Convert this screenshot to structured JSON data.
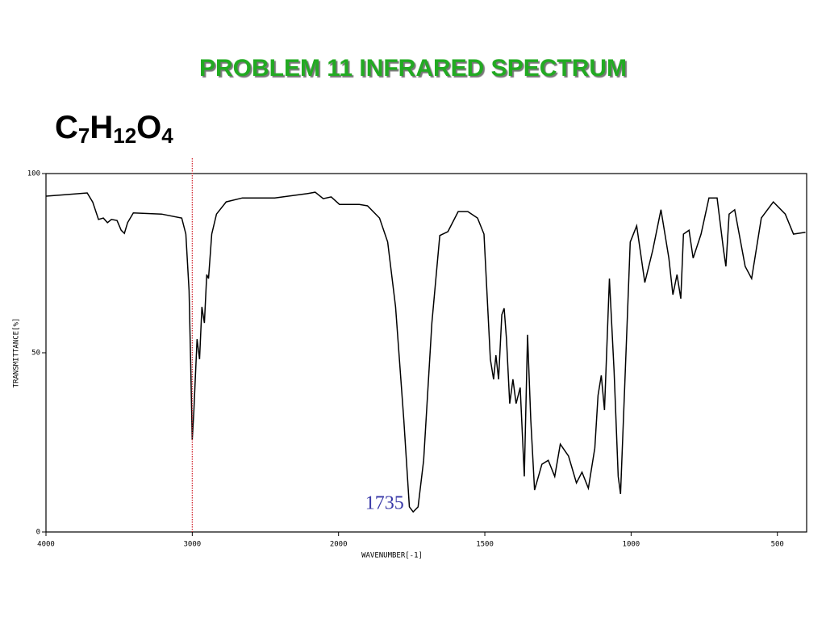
{
  "chart_data": {
    "type": "line",
    "title": "PROBLEM  11   INFRARED SPECTRUM",
    "formula": [
      {
        "text": "C"
      },
      {
        "text": "7",
        "sub": true
      },
      {
        "text": "H"
      },
      {
        "text": "12",
        "sub": true
      },
      {
        "text": "O"
      },
      {
        "text": "4",
        "sub": true
      }
    ],
    "x_label": "WAVENUMBER[-1]",
    "y_label": "TRANSMITTANCE[%]",
    "annotation": {
      "text": "1735",
      "x": 1735
    },
    "reference_line": {
      "x": 3000,
      "color": "#d0202a"
    },
    "xlim": [
      4000,
      400
    ],
    "x_scale_break": 2000,
    "xticks": [
      4000,
      3000,
      2000,
      1500,
      1000,
      500
    ],
    "ylim": [
      0,
      100
    ],
    "yticks": [
      0,
      50,
      100
    ],
    "series": [
      {
        "color": "#000000",
        "x": [
          4000,
          3873,
          3718,
          3680,
          3641,
          3608,
          3580,
          3552,
          3514,
          3486,
          3464,
          3442,
          3403,
          3210,
          3072,
          3044,
          3022,
          3011,
          3000,
          2989,
          2967,
          2950,
          2934,
          2917,
          2901,
          2889,
          2867,
          2834,
          2768,
          2657,
          2436,
          2215,
          2160,
          2105,
          2050,
          1997,
          1929,
          1901,
          1860,
          1832,
          1805,
          1777,
          1758,
          1745,
          1728,
          1709,
          1681,
          1654,
          1626,
          1591,
          1558,
          1525,
          1503,
          1481,
          1470,
          1462,
          1453,
          1442,
          1434,
          1426,
          1415,
          1404,
          1393,
          1379,
          1365,
          1354,
          1343,
          1330,
          1305,
          1283,
          1261,
          1242,
          1214,
          1187,
          1168,
          1146,
          1124,
          1113,
          1102,
          1091,
          1074,
          1058,
          1044,
          1036,
          1022,
          1003,
          981,
          953,
          926,
          898,
          871,
          857,
          843,
          830,
          821,
          802,
          788,
          761,
          734,
          706,
          684,
          676,
          665,
          646,
          610,
          588,
          555,
          514,
          473,
          445,
          404
        ],
        "values": [
          93.7,
          94.1,
          94.6,
          92,
          87.2,
          87.6,
          86.3,
          87.2,
          86.9,
          84.2,
          83.3,
          86.3,
          89,
          88.7,
          87.6,
          83.1,
          67.3,
          47,
          25.7,
          33.6,
          53.8,
          48.2,
          62.8,
          58.3,
          71.8,
          70.7,
          83.1,
          88.7,
          92.1,
          93.2,
          93.2,
          94.4,
          94.8,
          93,
          93.5,
          91.4,
          91.4,
          91,
          87.6,
          80.9,
          62.8,
          31.3,
          7,
          5.6,
          7,
          20,
          58.3,
          82.7,
          83.8,
          89.4,
          89.4,
          87.6,
          83.1,
          48.2,
          42.6,
          49.3,
          42.6,
          60.6,
          62.4,
          53.8,
          35.8,
          42.6,
          35.8,
          40.3,
          15.5,
          55,
          31.3,
          11.7,
          18.9,
          20,
          15.5,
          24.5,
          21.2,
          13.7,
          16.7,
          12.2,
          23.4,
          38.1,
          43.7,
          34,
          70.7,
          44.8,
          15.5,
          10.6,
          40.3,
          80.9,
          85.4,
          69.6,
          78.6,
          89.9,
          76.4,
          66.2,
          71.8,
          65.1,
          83.1,
          84.2,
          76.4,
          83.1,
          93.2,
          93.2,
          78.6,
          74.1,
          88.7,
          89.9,
          74.1,
          70.7,
          87.6,
          92.1,
          88.7,
          83.1,
          83.6
        ]
      }
    ]
  }
}
